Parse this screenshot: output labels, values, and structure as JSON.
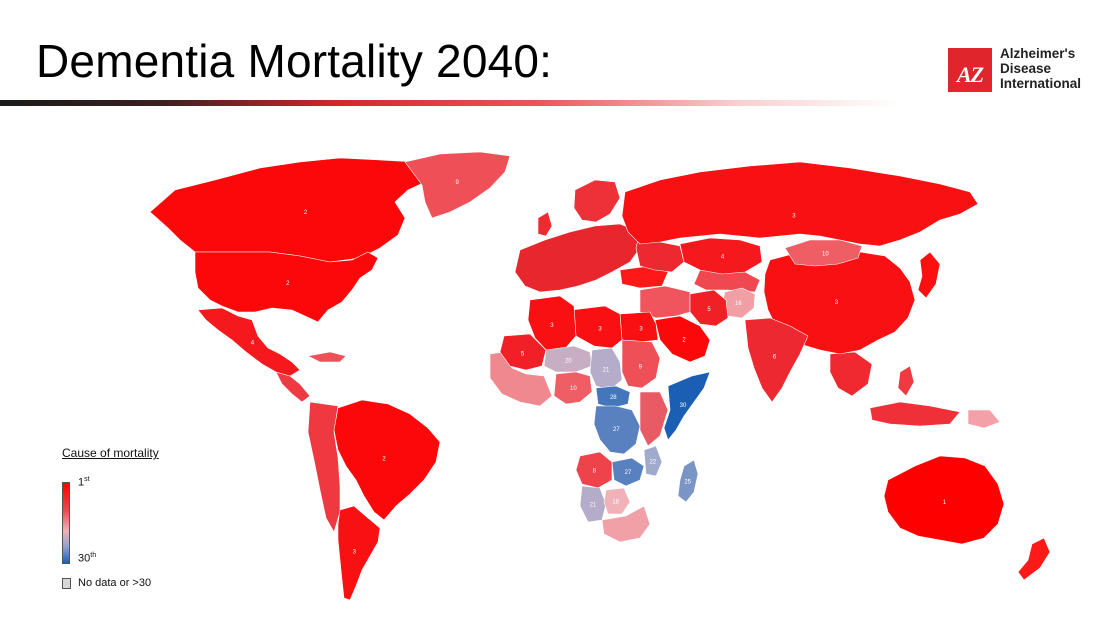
{
  "title": "Dementia Mortality 2040:",
  "logo": {
    "mark": "AZ",
    "line1": "Alzheimer's",
    "line2": "Disease",
    "line3": "International",
    "color": "#e0262c"
  },
  "legend": {
    "title": "Cause of mortality",
    "top_label": "1",
    "top_suffix": "st",
    "bottom_label": "30",
    "bottom_suffix": "th",
    "nodata_label": "No data or >30",
    "color_top": "#ff0000",
    "color_bottom": "#1a5fb4",
    "color_nodata": "#d8d8d8"
  },
  "regions": [
    {
      "name": "Canada",
      "rank": "2"
    },
    {
      "name": "United States",
      "rank": "2"
    },
    {
      "name": "Greenland",
      "rank": "9"
    },
    {
      "name": "Mexico",
      "rank": "4"
    },
    {
      "name": "Brazil",
      "rank": "2"
    },
    {
      "name": "Argentina",
      "rank": "3"
    },
    {
      "name": "Russia",
      "rank": "3"
    },
    {
      "name": "China",
      "rank": "3"
    },
    {
      "name": "Mongolia",
      "rank": "10"
    },
    {
      "name": "Afghanistan",
      "rank": "16"
    },
    {
      "name": "India",
      "rank": "6"
    },
    {
      "name": "Saudi Arabia",
      "rank": "2"
    },
    {
      "name": "Egypt",
      "rank": "3"
    },
    {
      "name": "Libya",
      "rank": "3"
    },
    {
      "name": "Algeria",
      "rank": "3"
    },
    {
      "name": "Mali",
      "rank": "5"
    },
    {
      "name": "Niger",
      "rank": "20"
    },
    {
      "name": "Chad",
      "rank": "21"
    },
    {
      "name": "Sudan",
      "rank": "9"
    },
    {
      "name": "Somalia",
      "rank": "30"
    },
    {
      "name": "Mozambique",
      "rank": "22"
    },
    {
      "name": "Zambia",
      "rank": "27"
    },
    {
      "name": "Madagascar",
      "rank": "25"
    },
    {
      "name": "Angola",
      "rank": "8"
    },
    {
      "name": "Namibia",
      "rank": "21"
    },
    {
      "name": "Botswana",
      "rank": "18"
    },
    {
      "name": "Nigeria",
      "rank": "10"
    },
    {
      "name": "CAR",
      "rank": "28"
    },
    {
      "name": "DR Congo",
      "rank": "27"
    },
    {
      "name": "Australia",
      "rank": "1"
    },
    {
      "name": "Kazakhstan",
      "rank": "4"
    },
    {
      "name": "Iran",
      "rank": "5"
    }
  ]
}
